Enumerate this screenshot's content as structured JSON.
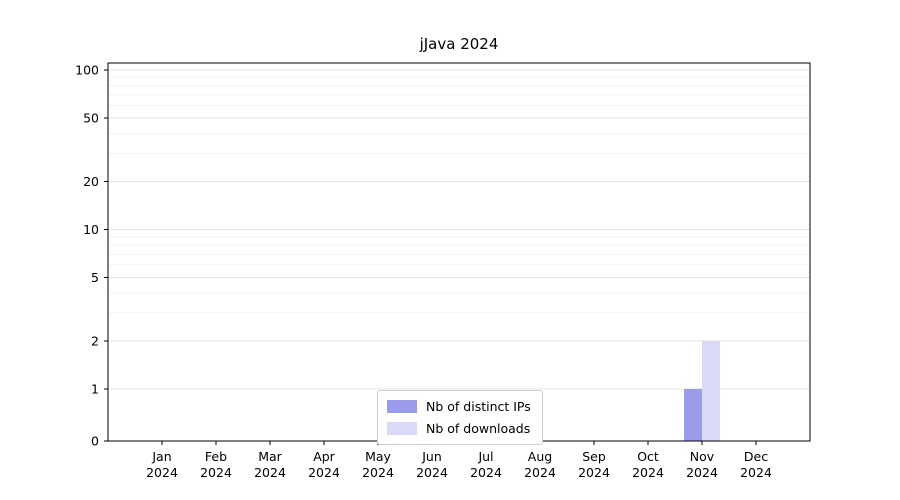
{
  "title": "jJava 2024",
  "colors": {
    "distinct_ips": "#9b9bec",
    "downloads": "#d9d9f8",
    "grid_minor": "#f2f2f2",
    "grid_major": "#e4e4e4",
    "axis": "#000000",
    "background": "#ffffff"
  },
  "legend": {
    "items": [
      {
        "label": "Nb of distinct IPs",
        "color_key": "distinct_ips"
      },
      {
        "label": "Nb of downloads",
        "color_key": "downloads"
      }
    ]
  },
  "chart_data": {
    "type": "bar",
    "title": "jJava 2024",
    "categories": [
      "Jan",
      "Feb",
      "Mar",
      "Apr",
      "May",
      "Jun",
      "Jul",
      "Aug",
      "Sep",
      "Oct",
      "Nov",
      "Dec"
    ],
    "year": "2024",
    "series": [
      {
        "name": "Nb of distinct IPs",
        "color_key": "distinct_ips",
        "values": [
          0,
          0,
          0,
          0,
          0,
          0,
          0,
          0,
          0,
          0,
          1,
          0
        ]
      },
      {
        "name": "Nb of downloads",
        "color_key": "downloads",
        "values": [
          0,
          0,
          0,
          0,
          0,
          0,
          0,
          0,
          0,
          0,
          2,
          0
        ]
      }
    ],
    "yscale": "symlog",
    "y_ticks": [
      0,
      1,
      2,
      5,
      10,
      20,
      50,
      100
    ],
    "y_minor_gridlines": [
      3,
      4,
      6,
      7,
      8,
      9,
      30,
      40,
      60,
      70,
      80,
      90
    ],
    "ylim": [
      0,
      100
    ],
    "grid": true,
    "legend_position": "lower center"
  }
}
